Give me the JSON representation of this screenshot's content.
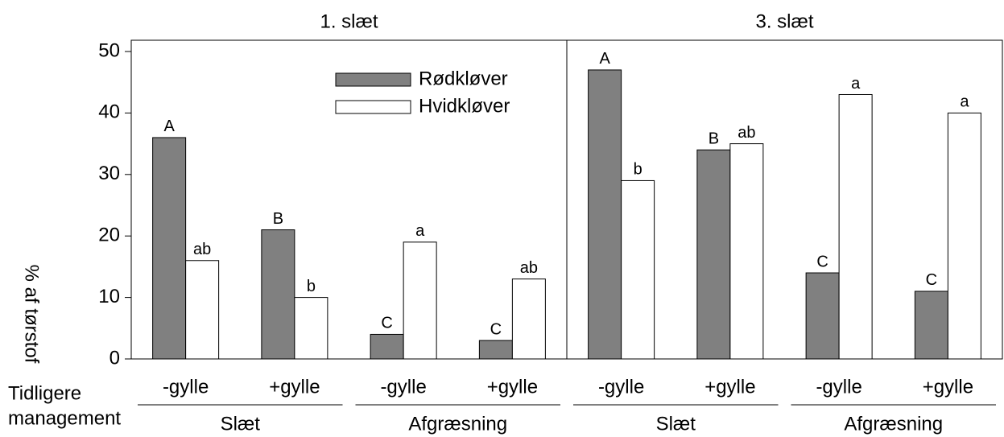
{
  "chart_data": {
    "type": "bar",
    "panels": [
      {
        "title": "1. slæt"
      },
      {
        "title": "3. slæt"
      }
    ],
    "categories": [
      "-gylle",
      "+gylle",
      "-gylle",
      "+gylle",
      "-gylle",
      "+gylle",
      "-gylle",
      "+gylle"
    ],
    "groups": [
      "Slæt",
      "Afgræsning",
      "Slæt",
      "Afgræsning"
    ],
    "row_label": [
      "Tidligere",
      "management"
    ],
    "y_label": "% af tørstof",
    "ylim": [
      0,
      50
    ],
    "yticks": [
      0,
      10,
      20,
      30,
      40,
      50
    ],
    "series": [
      {
        "name": "Rødkløver",
        "color": "#808080",
        "values": [
          36,
          21,
          4,
          3,
          47,
          34,
          14,
          11
        ],
        "letters": [
          "A",
          "B",
          "C",
          "C",
          "A",
          "B",
          "C",
          "C"
        ]
      },
      {
        "name": "Hvidkløver",
        "color": "#ffffff",
        "values": [
          16,
          10,
          19,
          13,
          29,
          35,
          43,
          40
        ],
        "letters": [
          "ab",
          "b",
          "a",
          "ab",
          "b",
          "ab",
          "a",
          "a"
        ]
      }
    ]
  }
}
